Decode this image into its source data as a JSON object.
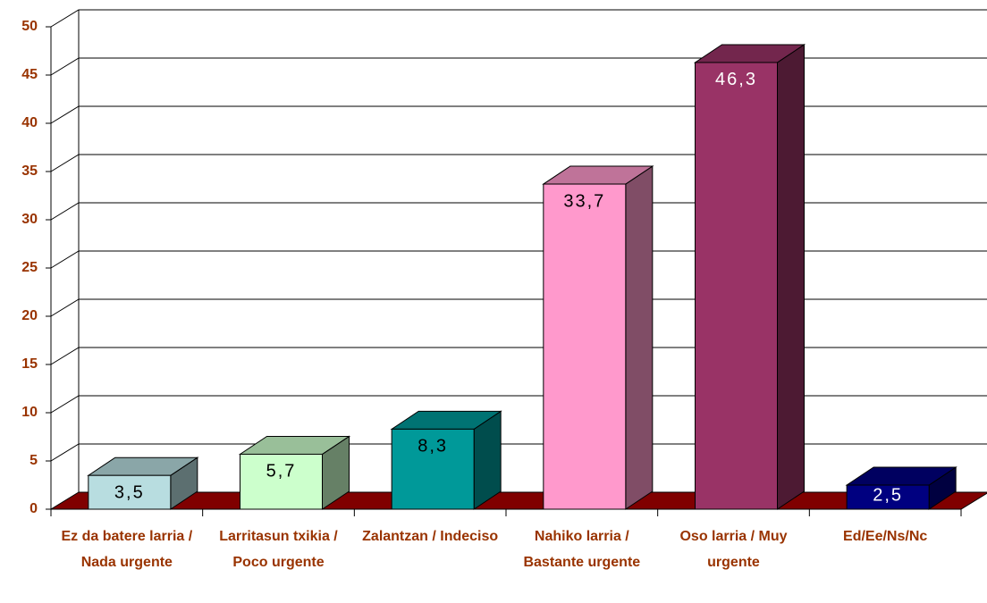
{
  "chart_data": {
    "type": "bar3d",
    "categories": [
      "Ez da batere larria / Nada urgente",
      "Larritasun txikia / Poco urgente",
      "Zalantzan / Indeciso",
      "Nahiko larria / Bastante urgente",
      "Oso larria / Muy urgente",
      "Ed/Ee/Ns/Nc"
    ],
    "values": [
      3.5,
      5.7,
      8.3,
      33.7,
      46.3,
      2.5
    ],
    "value_labels": [
      "3,5",
      "5,7",
      "8,3",
      "33,7",
      "46,3",
      "2,5"
    ],
    "colors": [
      "#b8dde0",
      "#ccffcc",
      "#009999",
      "#ff99cc",
      "#993366",
      "#000080"
    ],
    "value_label_colors": [
      "#000000",
      "#000000",
      "#000000",
      "#000000",
      "#ffffff",
      "#ffffff"
    ],
    "floor_color": "#800000",
    "ylim": [
      0,
      50
    ],
    "yticks": [
      0,
      5,
      10,
      15,
      20,
      25,
      30,
      35,
      40,
      45,
      50
    ],
    "grid": true
  }
}
